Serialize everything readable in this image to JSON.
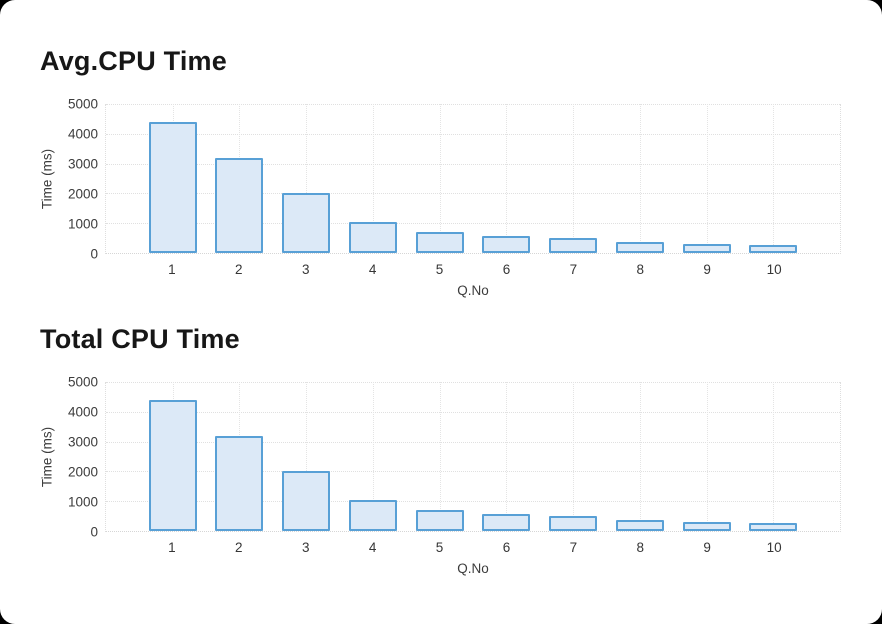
{
  "theme": {
    "page_background": "#000000",
    "card_background": "#ffffff",
    "bar_fill": "#dce9f7",
    "bar_stroke": "#58a0d6",
    "grid_color": "#e0e0e0",
    "axis_text_color": "#3c3c3c",
    "title_color": "#171717"
  },
  "chart_data": [
    {
      "type": "bar",
      "title": "Avg.CPU Time",
      "xlabel": "Q.No",
      "ylabel": "Time (ms)",
      "categories": [
        "1",
        "2",
        "3",
        "4",
        "5",
        "6",
        "7",
        "8",
        "9",
        "10"
      ],
      "values": [
        4400,
        3200,
        2000,
        1030,
        690,
        560,
        520,
        380,
        310,
        260
      ],
      "ylim": [
        0,
        5000
      ],
      "y_ticks": [
        "5000",
        "4000",
        "3000",
        "2000",
        "1000",
        "0"
      ],
      "grid": true,
      "grid_style": "dotted",
      "legend": false
    },
    {
      "type": "bar",
      "title": "Total CPU Time",
      "xlabel": "Q.No",
      "ylabel": "Time (ms)",
      "categories": [
        "1",
        "2",
        "3",
        "4",
        "5",
        "6",
        "7",
        "8",
        "9",
        "10"
      ],
      "values": [
        4400,
        3200,
        2000,
        1030,
        690,
        560,
        520,
        380,
        310,
        260
      ],
      "ylim": [
        0,
        5000
      ],
      "y_ticks": [
        "5000",
        "4000",
        "3000",
        "2000",
        "1000",
        "0"
      ],
      "grid": true,
      "grid_style": "dotted",
      "legend": false
    }
  ]
}
